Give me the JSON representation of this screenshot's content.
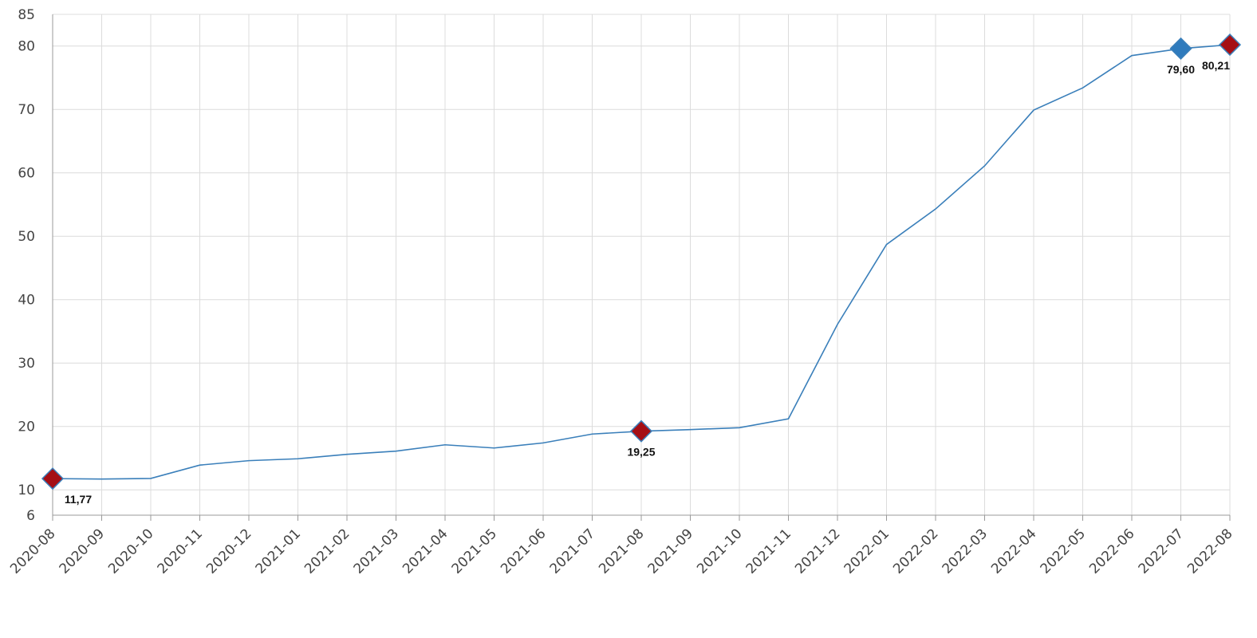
{
  "chart_data": {
    "type": "line",
    "categories": [
      "2020-08",
      "2020-09",
      "2020-10",
      "2020-11",
      "2020-12",
      "2021-01",
      "2021-02",
      "2021-03",
      "2021-04",
      "2021-05",
      "2021-06",
      "2021-07",
      "2021-08",
      "2021-09",
      "2021-10",
      "2021-11",
      "2021-12",
      "2022-01",
      "2022-02",
      "2022-03",
      "2022-04",
      "2022-05",
      "2022-06",
      "2022-07",
      "2022-08"
    ],
    "values": [
      11.77,
      11.7,
      11.8,
      13.9,
      14.6,
      14.9,
      15.6,
      16.1,
      17.1,
      16.6,
      17.4,
      18.8,
      19.25,
      19.5,
      19.8,
      21.2,
      36.1,
      48.7,
      54.3,
      61.1,
      69.9,
      73.4,
      78.5,
      79.6,
      80.21
    ],
    "color": "#3a7fba",
    "markers": [
      {
        "index": 0,
        "color": "#a50f15",
        "value_label": "11,77"
      },
      {
        "index": 12,
        "color": "#a50f15",
        "value_label": "19,25"
      },
      {
        "index": 23,
        "color": "#2f7bbd",
        "value_label": "79,60"
      },
      {
        "index": 24,
        "color": "#a50f15",
        "value_label": "80,21"
      }
    ],
    "ylim": [
      6,
      85
    ],
    "yticks": [
      6,
      10,
      20,
      30,
      40,
      50,
      60,
      70,
      80,
      85
    ],
    "grid": true
  }
}
